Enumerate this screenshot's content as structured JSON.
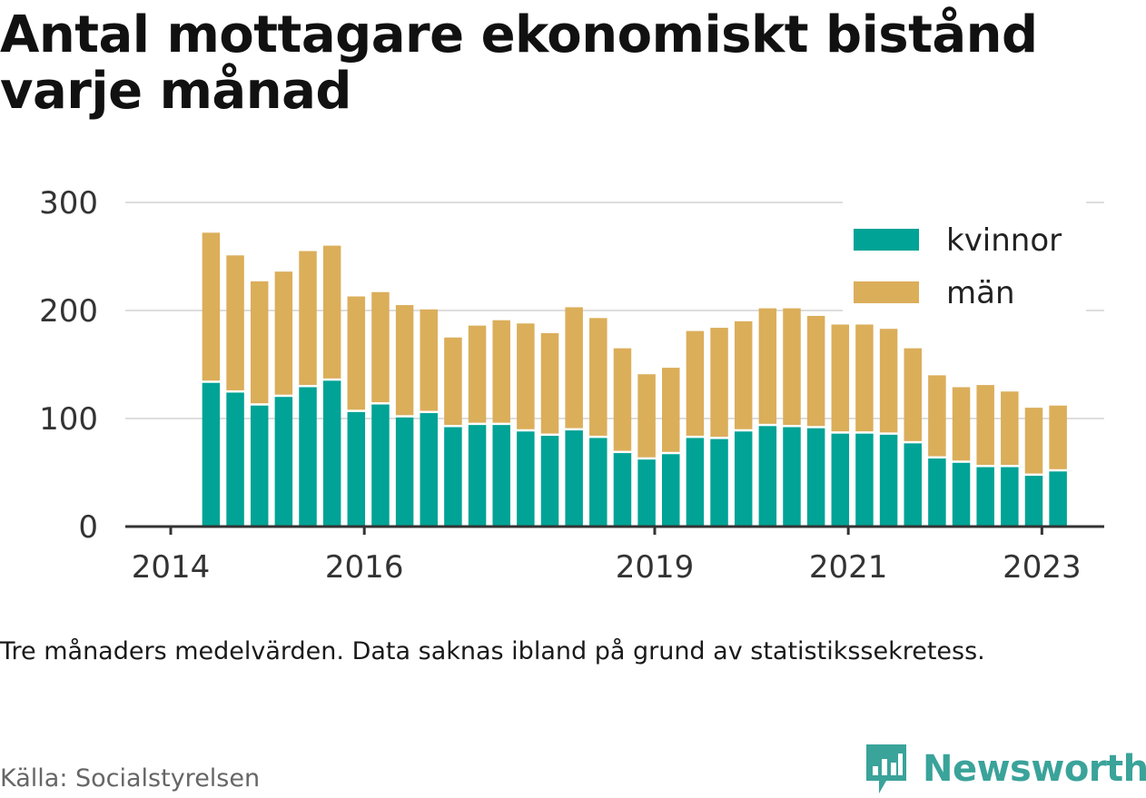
{
  "title": "Antal mottagare ekonomiskt bistånd varje månad",
  "note": "Tre månaders medelvärden. Data saknas ibland på grund av statistikssekretess.",
  "source": "Källa: Socialstyrelsen",
  "brand": {
    "name": "Newsworthy",
    "icon": "newsworthy-logo-icon",
    "color": "#3aa39a"
  },
  "chart_data": {
    "type": "bar",
    "stacked": true,
    "title": "",
    "xlabel": "",
    "ylabel": "",
    "ylim": [
      0,
      300
    ],
    "yticks": [
      0,
      100,
      200,
      300
    ],
    "xticks": [
      {
        "year": 2014,
        "label": "2014"
      },
      {
        "year": 2016,
        "label": "2016"
      },
      {
        "year": 2019,
        "label": "2019"
      },
      {
        "year": 2021,
        "label": "2021"
      },
      {
        "year": 2023,
        "label": "2023"
      }
    ],
    "grid": true,
    "legend": "top-right",
    "x": [
      "2014-06",
      "2014-09",
      "2014-12",
      "2015-03",
      "2015-06",
      "2015-09",
      "2015-12",
      "2016-03",
      "2016-06",
      "2016-09",
      "2016-12",
      "2017-03",
      "2017-06",
      "2017-09",
      "2017-12",
      "2018-03",
      "2018-06",
      "2018-09",
      "2018-12",
      "2019-03",
      "2019-06",
      "2019-09",
      "2019-12",
      "2020-03",
      "2020-06",
      "2020-09",
      "2020-12",
      "2021-03",
      "2021-06",
      "2021-09",
      "2021-12",
      "2022-03",
      "2022-06",
      "2022-09",
      "2022-12",
      "2023-03"
    ],
    "series": [
      {
        "name": "kvinnor",
        "color": "#00a396",
        "values": [
          133,
          124,
          112,
          120,
          129,
          135,
          106,
          113,
          101,
          105,
          92,
          94,
          94,
          88,
          84,
          89,
          82,
          68,
          62,
          67,
          82,
          81,
          88,
          93,
          92,
          91,
          86,
          86,
          85,
          77,
          63,
          59,
          55,
          55,
          47,
          51
        ]
      },
      {
        "name": "män",
        "color": "#dbae5a",
        "values": [
          139,
          127,
          115,
          116,
          126,
          125,
          107,
          104,
          104,
          96,
          83,
          92,
          97,
          100,
          95,
          114,
          111,
          97,
          79,
          80,
          99,
          103,
          102,
          109,
          110,
          104,
          101,
          101,
          98,
          88,
          77,
          70,
          76,
          70,
          63,
          61
        ]
      }
    ]
  }
}
